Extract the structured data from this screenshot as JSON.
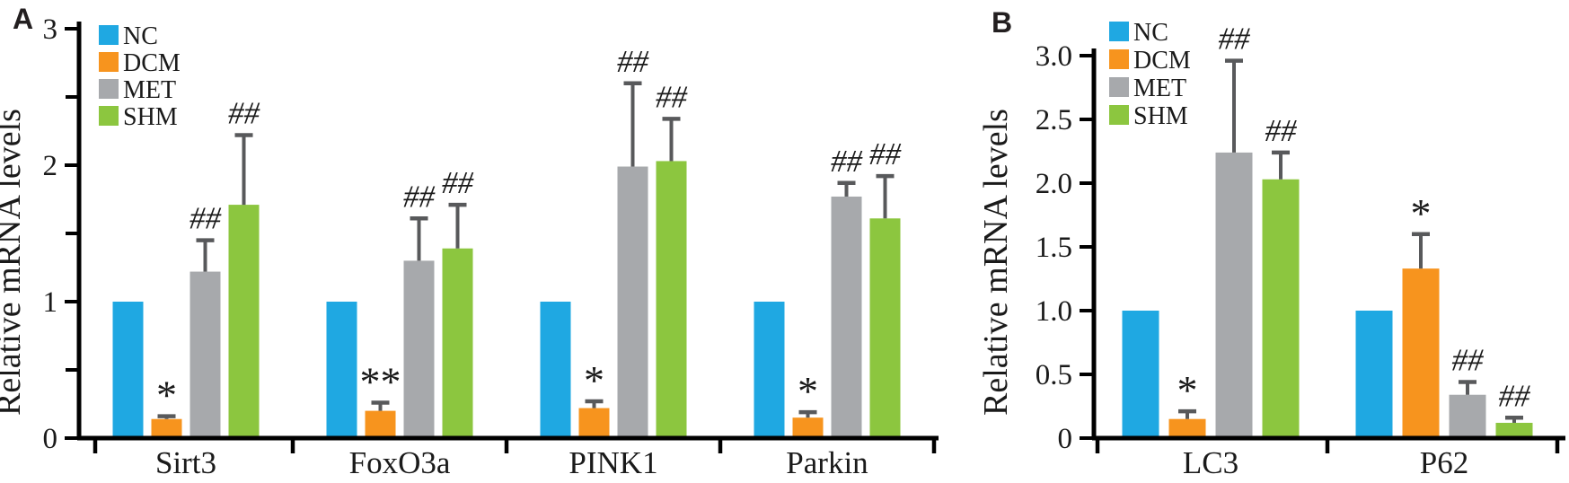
{
  "figure": {
    "background": "#ffffff",
    "colors": {
      "axis": "#000000",
      "text": "#1a1a1a",
      "error_bar": "#58595b"
    }
  },
  "chart_data": [
    {
      "panel_label": "A",
      "type": "bar",
      "title": "",
      "xlabel": "",
      "ylabel": "Relative mRNA levels",
      "ylim": [
        0,
        3
      ],
      "grid": false,
      "legend_position": "top-left-inside",
      "yticks": [
        {
          "value": 0,
          "label": "0"
        },
        {
          "value": 1,
          "label": "1"
        },
        {
          "value": 2,
          "label": "2"
        },
        {
          "value": 3,
          "label": "3"
        }
      ],
      "minor_yticks": [
        0.5,
        1.5,
        2.5
      ],
      "categories": [
        "Sirt3",
        "FoxO3a",
        "PINK1",
        "Parkin"
      ],
      "series": [
        {
          "name": "NC",
          "color": "#1fa8e2",
          "values": [
            1.0,
            1.0,
            1.0,
            1.0
          ],
          "errors": [
            0,
            0,
            0,
            0
          ],
          "significance": [
            "",
            "",
            "",
            ""
          ]
        },
        {
          "name": "DCM",
          "color": "#f7941e",
          "values": [
            0.14,
            0.2,
            0.22,
            0.15
          ],
          "errors": [
            0.02,
            0.06,
            0.05,
            0.04
          ],
          "significance": [
            "*",
            "**",
            "*",
            "*"
          ]
        },
        {
          "name": "MET",
          "color": "#a7a9ac",
          "values": [
            1.22,
            1.3,
            1.99,
            1.77
          ],
          "errors": [
            0.23,
            0.31,
            0.61,
            0.1
          ],
          "significance": [
            "##",
            "##",
            "##",
            "##"
          ]
        },
        {
          "name": "SHM",
          "color": "#8cc63f",
          "values": [
            1.71,
            1.39,
            2.03,
            1.61
          ],
          "errors": [
            0.51,
            0.32,
            0.31,
            0.31
          ],
          "significance": [
            "##",
            "##",
            "##",
            "##"
          ]
        }
      ]
    },
    {
      "panel_label": "B",
      "type": "bar",
      "title": "",
      "xlabel": "",
      "ylabel": "Relative mRNA levels",
      "ylim": [
        0,
        3
      ],
      "grid": false,
      "legend_position": "top-left-inside",
      "yticks": [
        {
          "value": 0,
          "label": "0"
        },
        {
          "value": 0.5,
          "label": "0.5"
        },
        {
          "value": 1,
          "label": "1.0"
        },
        {
          "value": 1.5,
          "label": "1.5"
        },
        {
          "value": 2,
          "label": "2.0"
        },
        {
          "value": 2.5,
          "label": "2.5"
        },
        {
          "value": 3,
          "label": "3.0"
        }
      ],
      "minor_yticks": [],
      "categories": [
        "LC3",
        "P62"
      ],
      "series": [
        {
          "name": "NC",
          "color": "#1fa8e2",
          "values": [
            1.0,
            1.0
          ],
          "errors": [
            0,
            0
          ],
          "significance": [
            "",
            ""
          ]
        },
        {
          "name": "DCM",
          "color": "#f7941e",
          "values": [
            0.15,
            1.33
          ],
          "errors": [
            0.06,
            0.27
          ],
          "significance": [
            "*",
            "*"
          ]
        },
        {
          "name": "MET",
          "color": "#a7a9ac",
          "values": [
            2.24,
            0.34
          ],
          "errors": [
            0.72,
            0.1
          ],
          "significance": [
            "##",
            "##"
          ]
        },
        {
          "name": "SHM",
          "color": "#8cc63f",
          "values": [
            2.03,
            0.12
          ],
          "errors": [
            0.21,
            0.04
          ],
          "significance": [
            "##",
            "##"
          ]
        }
      ]
    }
  ]
}
